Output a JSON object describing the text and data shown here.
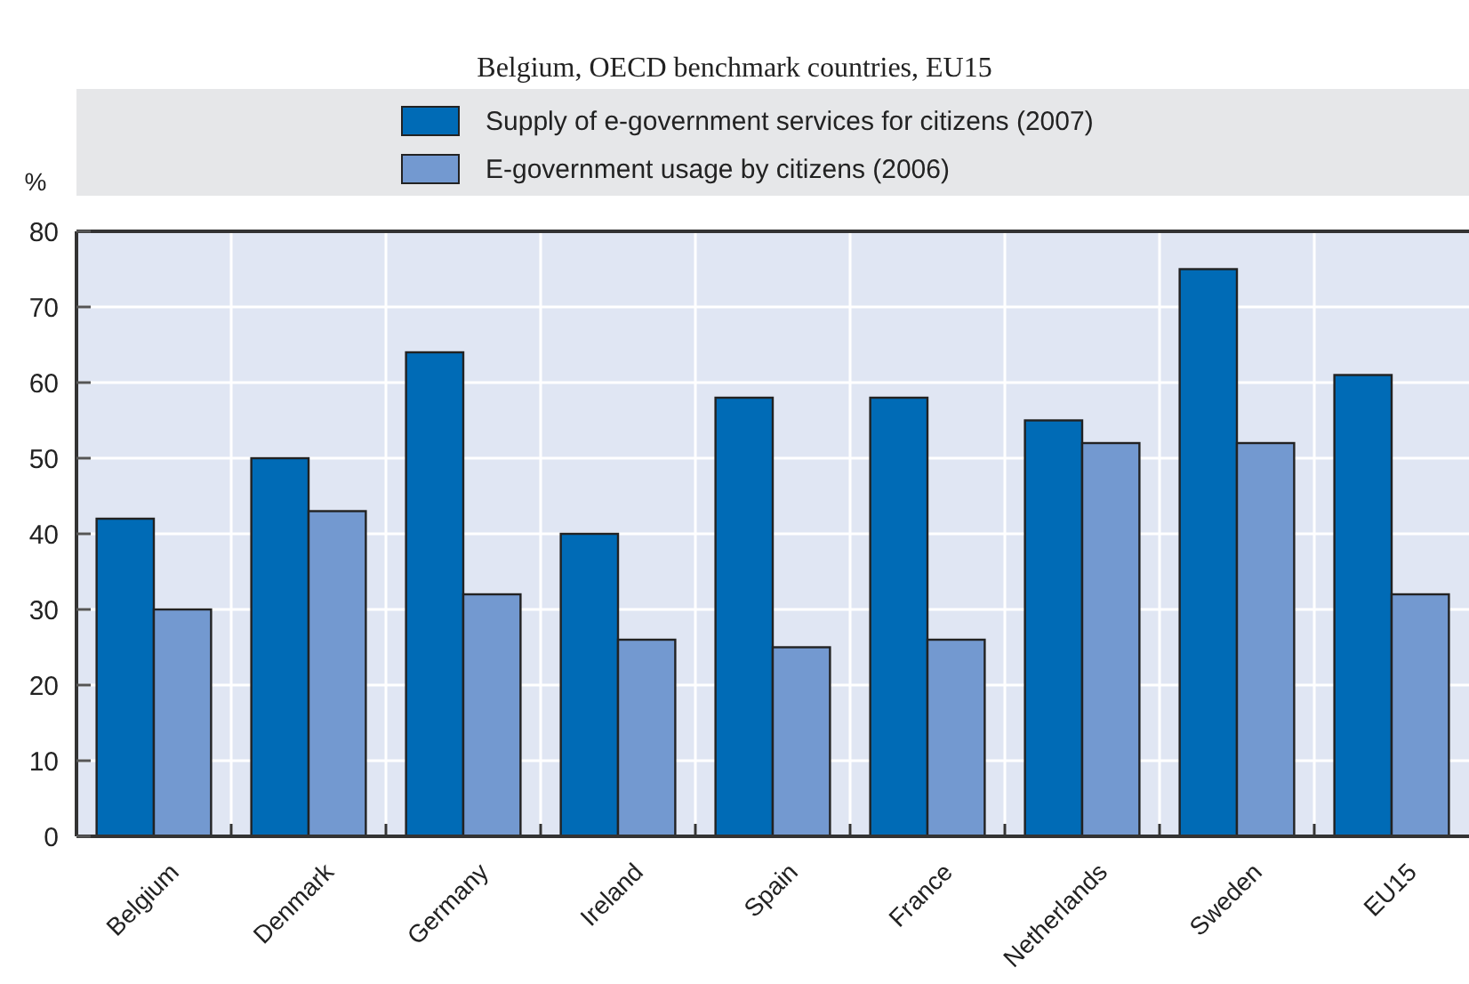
{
  "chart_data": {
    "type": "bar",
    "subtitle": "Belgium, OECD benchmark countries, EU15",
    "ylabel": "%",
    "categories": [
      "Belgium",
      "Denmark",
      "Germany",
      "Ireland",
      "Spain",
      "France",
      "Netherlands",
      "Sweden",
      "EU15"
    ],
    "series": [
      {
        "name": "Supply of e-government services for citizens (2007)",
        "color": "#006bb6",
        "values": [
          42,
          50,
          64,
          40,
          58,
          58,
          55,
          75,
          61
        ]
      },
      {
        "name": "E-government usage by citizens (2006)",
        "color": "#7399d0",
        "values": [
          30,
          43,
          32,
          26,
          25,
          26,
          52,
          52,
          32
        ]
      }
    ],
    "ylim": [
      0,
      80
    ],
    "yticks": [
      0,
      10,
      20,
      30,
      40,
      50,
      60,
      70,
      80
    ],
    "grid": true,
    "legend": "top"
  }
}
